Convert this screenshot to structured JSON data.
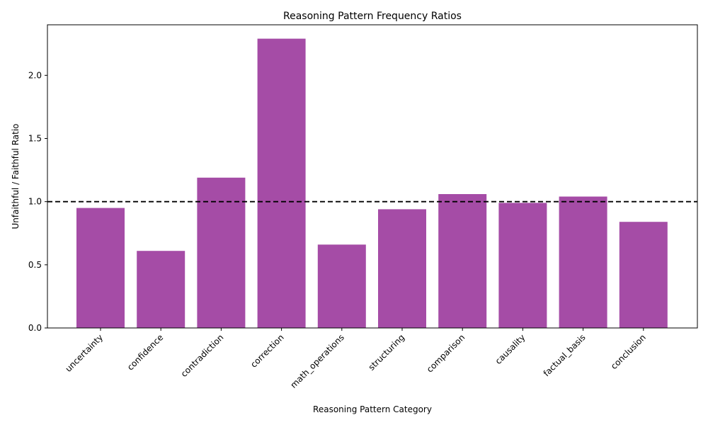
{
  "chart_data": {
    "type": "bar",
    "title": "Reasoning Pattern Frequency Ratios",
    "xlabel": "Reasoning Pattern Category",
    "ylabel": "Unfaithful / Faithful Ratio",
    "categories": [
      "uncertainty",
      "confidence",
      "contradiction",
      "correction",
      "math_operations",
      "structuring",
      "comparison",
      "causality",
      "factual_basis",
      "conclusion"
    ],
    "values": [
      0.95,
      0.61,
      1.19,
      2.29,
      0.66,
      0.94,
      1.06,
      0.99,
      1.04,
      0.84
    ],
    "ylim": [
      0,
      2.4
    ],
    "yticks": [
      "0.0",
      "0.5",
      "1.0",
      "1.5",
      "2.0"
    ],
    "reference_line": {
      "y": 1.0,
      "style": "dashed",
      "color": "#000000"
    },
    "bar_color": "#a54ca6",
    "grid": false,
    "xtick_rotation": 45
  }
}
